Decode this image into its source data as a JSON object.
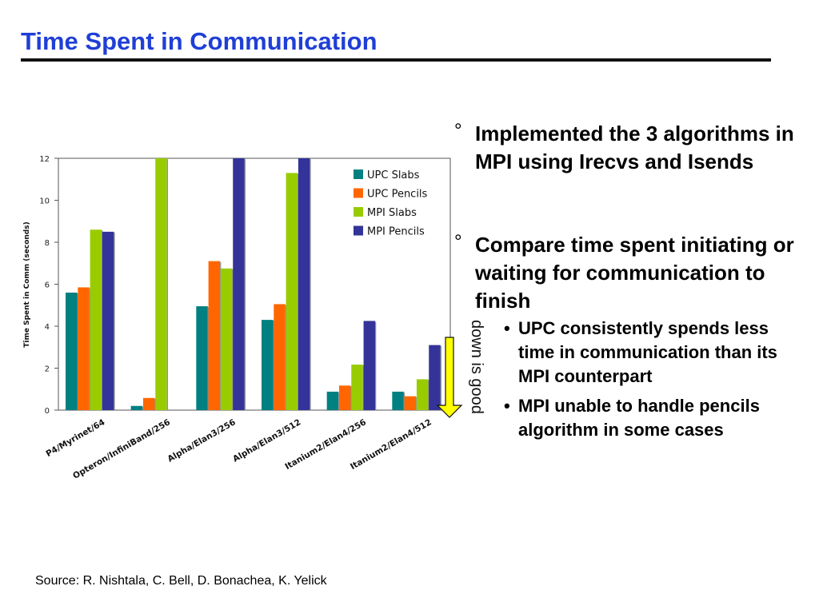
{
  "slide": {
    "title": "Time Spent in Communication",
    "source": "Source:  R. Nishtala, C. Bell, D. Bonachea, K. Yelick"
  },
  "bullets": [
    {
      "glyph": "°",
      "text": "Implemented the 3 algorithms in MPI using Irecvs and Isends",
      "subs": []
    },
    {
      "glyph": "°",
      "text": "Compare time spent initiating or waiting for communication to finish",
      "subs": [
        {
          "glyph": "•",
          "text": "UPC consistently spends less time in communication than its MPI counterpart"
        },
        {
          "glyph": "•",
          "text": "MPI unable to handle pencils algorithm in some cases"
        }
      ]
    }
  ],
  "annotation": {
    "text": "down is good",
    "arrow_color": "#ffff00"
  },
  "chart_data": {
    "type": "bar",
    "title": "",
    "xlabel": "",
    "ylabel": "Time Spent in Comm (seconds)",
    "ylim": [
      0,
      12
    ],
    "yticks": [
      0,
      2,
      4,
      6,
      8,
      10,
      12
    ],
    "grid": false,
    "legend_position": "top-right",
    "categories": [
      "P4/Myrinet/64",
      "Opteron/InfiniBand/256",
      "Alpha/Elan3/256",
      "Alpha/Elan3/512",
      "Itanium2/Elan4/256",
      "Itanium2/Elan4/512"
    ],
    "series": [
      {
        "name": "UPC Slabs",
        "color": "#008080",
        "values": [
          5.6,
          0.2,
          4.95,
          4.3,
          0.88,
          0.88
        ]
      },
      {
        "name": "UPC Pencils",
        "color": "#ff6600",
        "values": [
          5.85,
          0.58,
          7.1,
          5.05,
          1.17,
          0.66
        ]
      },
      {
        "name": "MPI Slabs",
        "color": "#99cc00",
        "values": [
          8.6,
          12,
          6.75,
          11.3,
          2.17,
          1.47
        ]
      },
      {
        "name": "MPI Pencils",
        "color": "#333399",
        "values": [
          8.5,
          null,
          12,
          12,
          4.25,
          3.1
        ]
      }
    ]
  }
}
